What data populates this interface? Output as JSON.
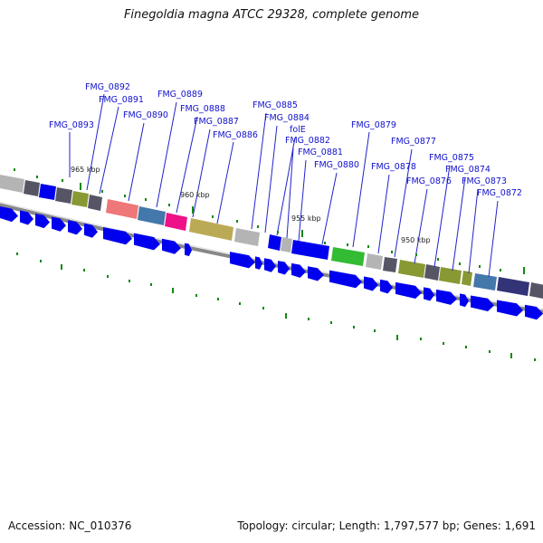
{
  "title": "Finegoldia magna ATCC 29328, complete genome",
  "footer": {
    "accession": "Accession: NC_010376",
    "topology": "Topology: circular; Length: 1,797,577 bp; Genes: 1,691"
  },
  "kbp_labels": [
    "965 kbp",
    "960 kbp",
    "955 kbp",
    "950 kbp"
  ],
  "gene_labels": [
    "FMG_0893",
    "FMG_0892",
    "FMG_0891",
    "FMG_0890",
    "FMG_0889",
    "FMG_0888",
    "FMG_0887",
    "FMG_0886",
    "FMG_0885",
    "FMG_0884",
    "folE",
    "FMG_0882",
    "FMG_0881",
    "FMG_0880",
    "FMG_0879",
    "FMG_0878",
    "FMG_0877",
    "FMG_0876",
    "FMG_0875",
    "FMG_0874",
    "FMG_0873",
    "FMG_0872"
  ],
  "colors": {
    "gene_arrow": "#0000ee",
    "label": "#1010cc",
    "gc_tick": "#118811",
    "backbone": "#888888",
    "feature_grey": "#b4b4b4",
    "feature_dark": "#555566",
    "feature_olive": "#889933",
    "feature_salmon": "#ee7777",
    "feature_steel": "#4477aa",
    "feature_magenta": "#ee1188",
    "feature_khaki": "#bbaa55",
    "feature_green": "#33bb33",
    "feature_navy": "#333377"
  }
}
